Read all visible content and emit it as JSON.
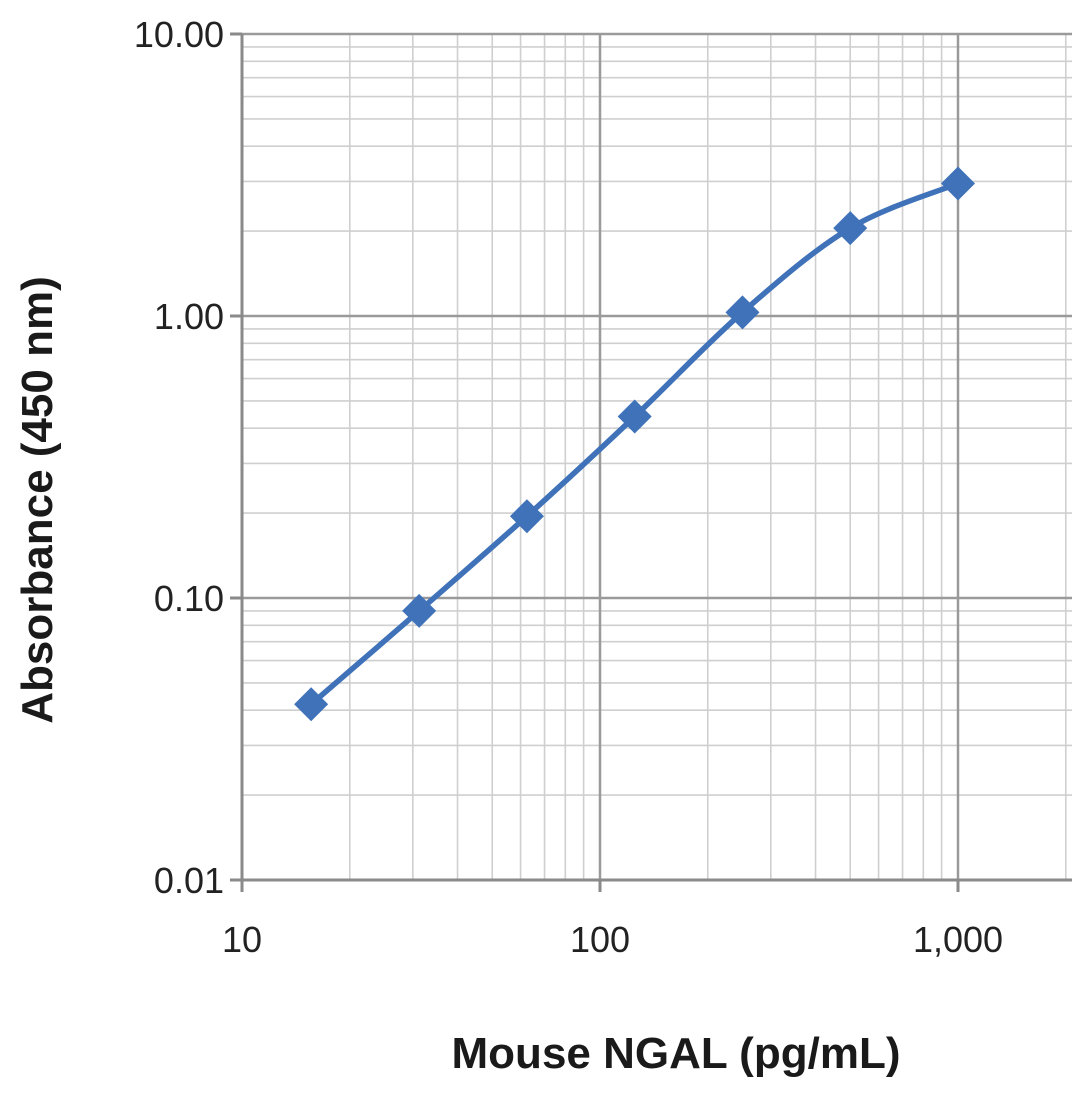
{
  "chart_data": {
    "type": "line",
    "title": "",
    "xlabel": "Mouse NGAL (pg/mL)",
    "ylabel": "Absorbance  (450 nm)",
    "x_scale": "log",
    "y_scale": "log",
    "xlim": [
      10,
      2000
    ],
    "ylim": [
      0.01,
      10
    ],
    "x_ticks": [
      {
        "value": 10,
        "label": "10"
      },
      {
        "value": 100,
        "label": "100"
      },
      {
        "value": 1000,
        "label": "1,000"
      }
    ],
    "y_ticks": [
      {
        "value": 0.01,
        "label": "0.01"
      },
      {
        "value": 0.1,
        "label": "0.10"
      },
      {
        "value": 1,
        "label": "1.00"
      },
      {
        "value": 10,
        "label": "10.00"
      }
    ],
    "grid": true,
    "legend": "none",
    "series": [
      {
        "color": "#3f72b8",
        "marker": "diamond",
        "smooth": true,
        "x": [
          15.6,
          31.25,
          62.5,
          125,
          250,
          500,
          1000
        ],
        "y": [
          0.042,
          0.09,
          0.195,
          0.44,
          1.03,
          2.05,
          2.95
        ]
      }
    ]
  }
}
